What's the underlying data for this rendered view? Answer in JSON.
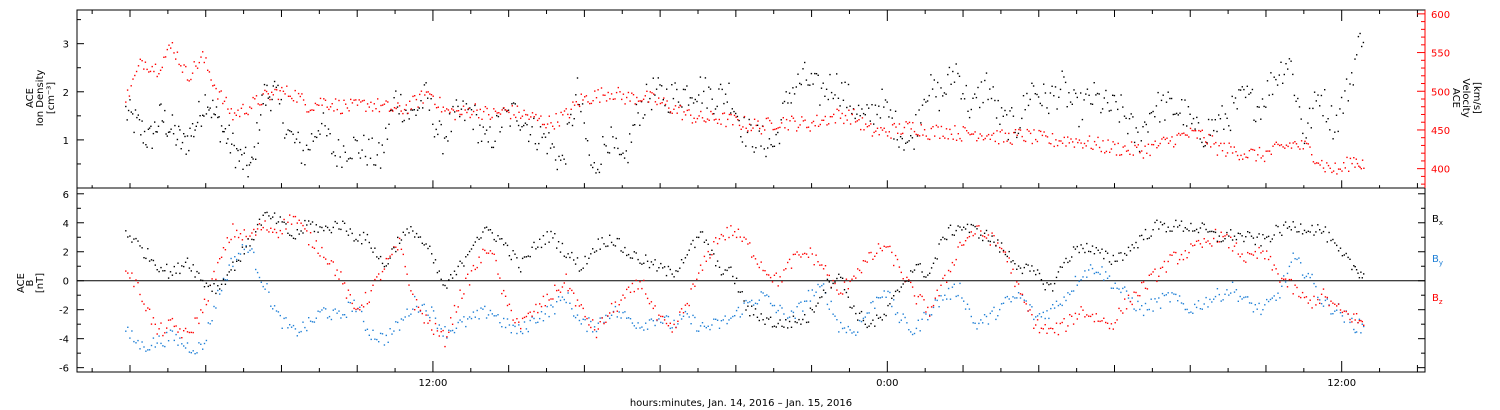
{
  "chart_data": [
    {
      "type": "scatter",
      "panel": "top",
      "ylabel_left": [
        "ACE",
        "Ion Density",
        "[cm⁻³]"
      ],
      "ylabel_right": [
        "ACE",
        "Velocity",
        "[km/s]"
      ],
      "ylim_left": [
        0,
        3.7
      ],
      "ylim_right": [
        375,
        605
      ],
      "yticks_left": [
        "1",
        "2",
        "3"
      ],
      "yticks_right": [
        "400",
        "450",
        "500",
        "550",
        "600"
      ],
      "series": [
        {
          "name": "",
          "color": "#000000",
          "axis": "left",
          "x": [
            -0.13,
            0.2,
            0.5,
            0.8,
            1.1,
            1.4,
            1.7,
            2.0,
            2.3,
            2.6,
            2.9,
            3.2,
            3.5,
            3.8,
            4.2,
            4.6,
            5.0,
            5.4,
            5.8,
            6.2,
            6.6,
            7.0,
            7.4,
            7.8,
            8.2,
            8.6,
            9.0,
            9.4,
            9.8,
            10.2,
            10.6,
            11.0,
            11.4,
            11.8,
            12.2,
            12.6,
            13.0,
            13.4,
            13.8,
            14.2,
            14.6,
            15.0,
            15.4,
            15.8,
            16.2,
            16.6,
            17.0,
            17.4,
            17.8,
            18.2,
            18.6,
            19.0,
            19.4,
            19.8,
            20.2,
            20.6,
            21.0,
            21.4,
            21.8,
            22.2,
            22.6,
            23.0,
            23.4,
            23.8,
            24.2,
            24.6,
            25.0,
            25.4,
            25.8,
            26.2,
            26.6,
            27.0,
            27.4,
            27.8,
            28.2,
            28.6,
            29.0,
            29.4,
            29.8,
            30.2,
            30.6,
            31.0,
            31.4,
            31.8,
            32.2,
            32.6
          ],
          "y": [
            1.6,
            1.3,
            1.0,
            1.5,
            1.2,
            0.9,
            1.3,
            1.9,
            1.4,
            1.0,
            0.6,
            0.4,
            1.9,
            2.0,
            1.1,
            0.7,
            1.4,
            0.7,
            0.9,
            0.8,
            0.6,
            1.9,
            1.5,
            1.9,
            1.0,
            1.5,
            1.6,
            0.9,
            1.4,
            1.6,
            1.2,
            1.0,
            0.5,
            2.0,
            0.3,
            1.1,
            0.4,
            1.6,
            2.0,
            1.9,
            2.0,
            2.1,
            1.9,
            2.0,
            1.2,
            1.0,
            0.9,
            2.0,
            2.3,
            2.0,
            2.2,
            1.8,
            1.4,
            1.8,
            1.3,
            0.9,
            2.1,
            1.9,
            2.5,
            1.6,
            2.2,
            1.4,
            1.3,
            2.1,
            1.8,
            2.1,
            1.6,
            1.9,
            1.7,
            1.6,
            1.0,
            1.7,
            1.7,
            1.6,
            1.1,
            1.3,
            1.5,
            1.9,
            1.7,
            2.3,
            2.7,
            1.1,
            2.0,
            1.3,
            2.2,
            3.5
          ]
        },
        {
          "name": "",
          "color": "#ff0000",
          "axis": "right",
          "x": [
            -0.13,
            0.3,
            0.7,
            1.1,
            1.5,
            1.9,
            2.3,
            2.7,
            3.1,
            3.5,
            3.9,
            4.3,
            4.7,
            5.1,
            5.5,
            5.9,
            6.3,
            6.7,
            7.1,
            7.5,
            7.9,
            8.3,
            8.7,
            9.1,
            9.5,
            9.9,
            10.3,
            10.7,
            11.1,
            11.5,
            11.9,
            12.3,
            12.7,
            13.1,
            13.5,
            13.9,
            14.3,
            14.7,
            15.1,
            15.5,
            15.9,
            16.3,
            16.7,
            17.1,
            17.5,
            17.9,
            18.3,
            18.7,
            19.1,
            19.5,
            19.9,
            20.3,
            20.7,
            21.1,
            21.5,
            21.9,
            22.3,
            22.7,
            23.1,
            23.5,
            23.9,
            24.3,
            24.7,
            25.1,
            25.5,
            25.9,
            26.3,
            26.7,
            27.1,
            27.5,
            27.9,
            28.3,
            28.7,
            29.1,
            29.5,
            29.9,
            30.3,
            30.7,
            31.1,
            31.5,
            31.9,
            32.3,
            32.6
          ],
          "y": [
            490,
            540,
            530,
            560,
            520,
            545,
            500,
            470,
            480,
            492,
            500,
            498,
            482,
            488,
            482,
            480,
            485,
            480,
            476,
            486,
            500,
            475,
            472,
            478,
            470,
            475,
            472,
            465,
            460,
            470,
            490,
            495,
            500,
            492,
            494,
            488,
            480,
            470,
            465,
            466,
            462,
            458,
            455,
            462,
            460,
            458,
            464,
            470,
            468,
            450,
            448,
            452,
            455,
            448,
            450,
            446,
            447,
            445,
            440,
            444,
            441,
            437,
            438,
            436,
            432,
            428,
            426,
            424,
            430,
            438,
            445,
            444,
            428,
            424,
            420,
            418,
            426,
            433,
            427,
            405,
            398,
            412,
            405
          ]
        }
      ]
    },
    {
      "type": "scatter",
      "panel": "bottom",
      "ylabel_left": [
        "ACE",
        "B",
        "[nT]"
      ],
      "ylim": [
        -6.3,
        6.4
      ],
      "yticks": [
        "-6",
        "-4",
        "-2",
        "0",
        "2",
        "4",
        "6"
      ],
      "legend": "right",
      "series": [
        {
          "name": "Bx",
          "color": "#000000",
          "x": [
            -0.13,
            0.3,
            0.7,
            1.1,
            1.5,
            1.9,
            2.3,
            2.7,
            3.1,
            3.5,
            3.9,
            4.3,
            4.7,
            5.1,
            5.5,
            5.9,
            6.3,
            6.7,
            7.1,
            7.5,
            7.9,
            8.3,
            8.7,
            9.1,
            9.5,
            9.9,
            10.3,
            10.7,
            11.1,
            11.5,
            11.9,
            12.3,
            12.7,
            13.1,
            13.5,
            13.9,
            14.3,
            14.7,
            15.1,
            15.5,
            15.9,
            16.3,
            16.7,
            17.1,
            17.5,
            17.9,
            18.3,
            18.7,
            19.1,
            19.5,
            19.9,
            20.3,
            20.7,
            21.1,
            21.5,
            21.9,
            22.3,
            22.7,
            23.1,
            23.5,
            23.9,
            24.3,
            24.7,
            25.1,
            25.5,
            25.9,
            26.3,
            26.7,
            27.1,
            27.5,
            27.9,
            28.3,
            28.7,
            29.1,
            29.5,
            29.9,
            30.3,
            30.7,
            31.1,
            31.5,
            31.9,
            32.3,
            32.6
          ],
          "y": [
            3.5,
            2.2,
            1.2,
            0.5,
            1.5,
            0.0,
            -0.5,
            1.0,
            2.5,
            4.5,
            4.2,
            3.0,
            4.0,
            3.5,
            4.0,
            3.2,
            2.8,
            1.0,
            3.0,
            3.5,
            2.0,
            -0.5,
            1.0,
            3.0,
            3.5,
            2.5,
            1.0,
            2.5,
            3.2,
            2.0,
            1.0,
            2.5,
            3.0,
            2.0,
            1.5,
            1.0,
            0.5,
            2.0,
            3.2,
            1.0,
            0.5,
            -2.0,
            -2.5,
            -3.0,
            -2.8,
            -2.5,
            -0.5,
            0.5,
            -2.0,
            -3.0,
            -2.5,
            -0.5,
            1.0,
            0.5,
            3.2,
            3.8,
            3.5,
            3.0,
            2.0,
            1.0,
            0.5,
            -0.5,
            1.5,
            2.5,
            2.0,
            1.5,
            2.0,
            3.0,
            3.8,
            3.8,
            3.8,
            3.6,
            3.0,
            3.2,
            3.0,
            2.8,
            3.5,
            3.8,
            3.7,
            3.5,
            2.0,
            1.0,
            0.4
          ]
        },
        {
          "name": "By",
          "color": "#1e7fd6",
          "x": [
            -0.13,
            0.3,
            0.7,
            1.1,
            1.5,
            1.9,
            2.3,
            2.7,
            3.1,
            3.5,
            3.9,
            4.3,
            4.7,
            5.1,
            5.5,
            5.9,
            6.3,
            6.7,
            7.1,
            7.5,
            7.9,
            8.3,
            8.7,
            9.1,
            9.5,
            9.9,
            10.3,
            10.7,
            11.1,
            11.5,
            11.9,
            12.3,
            12.7,
            13.1,
            13.5,
            13.9,
            14.3,
            14.7,
            15.1,
            15.5,
            15.9,
            16.3,
            16.7,
            17.1,
            17.5,
            17.9,
            18.3,
            18.7,
            19.1,
            19.5,
            19.9,
            20.3,
            20.7,
            21.1,
            21.5,
            21.9,
            22.3,
            22.7,
            23.1,
            23.5,
            23.9,
            24.3,
            24.7,
            25.1,
            25.5,
            25.9,
            26.3,
            26.7,
            27.1,
            27.5,
            27.9,
            28.3,
            28.7,
            29.1,
            29.5,
            29.9,
            30.3,
            30.7,
            31.1,
            31.5,
            31.9,
            32.3,
            32.6
          ],
          "y": [
            -3.5,
            -4.5,
            -4.2,
            -3.8,
            -4.5,
            -4.6,
            -1.0,
            1.5,
            2.5,
            0.0,
            -2.5,
            -3.5,
            -3.0,
            -2.0,
            -2.5,
            -1.5,
            -3.5,
            -4.0,
            -3.0,
            -1.5,
            -2.0,
            -3.5,
            -3.0,
            -2.5,
            -2.0,
            -3.0,
            -3.5,
            -2.5,
            -2.0,
            -1.0,
            -3.0,
            -3.0,
            -2.0,
            -2.5,
            -3.0,
            -2.5,
            -3.0,
            -2.5,
            -3.2,
            -3.0,
            -2.5,
            -1.5,
            -1.0,
            -2.0,
            -2.5,
            -1.0,
            -0.5,
            -3.0,
            -3.5,
            -2.0,
            -0.5,
            -2.5,
            -3.5,
            -2.0,
            -1.0,
            -0.5,
            -3.0,
            -2.5,
            -1.5,
            -1.0,
            -2.5,
            -2.0,
            -1.0,
            0.5,
            1.0,
            0.0,
            -1.0,
            -2.0,
            -1.5,
            -1.0,
            -2.0,
            -1.5,
            -1.0,
            -0.5,
            -1.5,
            -2.0,
            -1.0,
            1.5,
            0.5,
            -1.5,
            -2.0,
            -3.0,
            -3.2
          ]
        },
        {
          "name": "Bz",
          "color": "#ff0000",
          "x": [
            -0.13,
            0.3,
            0.7,
            1.1,
            1.5,
            1.9,
            2.3,
            2.7,
            3.1,
            3.5,
            3.9,
            4.3,
            4.7,
            5.1,
            5.5,
            5.9,
            6.3,
            6.7,
            7.1,
            7.5,
            7.9,
            8.3,
            8.7,
            9.1,
            9.5,
            9.9,
            10.3,
            10.7,
            11.1,
            11.5,
            11.9,
            12.3,
            12.7,
            13.1,
            13.5,
            13.9,
            14.3,
            14.7,
            15.1,
            15.5,
            15.9,
            16.3,
            16.7,
            17.1,
            17.5,
            17.9,
            18.3,
            18.7,
            19.1,
            19.5,
            19.9,
            20.3,
            20.7,
            21.1,
            21.5,
            21.9,
            22.3,
            22.7,
            23.1,
            23.5,
            23.9,
            24.3,
            24.7,
            25.1,
            25.5,
            25.9,
            26.3,
            26.7,
            27.1,
            27.5,
            27.9,
            28.3,
            28.7,
            29.1,
            29.5,
            29.9,
            30.3,
            30.7,
            31.1,
            31.5,
            31.9,
            32.3,
            32.6
          ],
          "y": [
            1.0,
            -1.0,
            -3.5,
            -3.0,
            -3.8,
            -2.0,
            1.0,
            3.5,
            3.0,
            3.8,
            3.5,
            4.5,
            3.0,
            2.0,
            0.5,
            -2.0,
            -1.0,
            1.0,
            2.5,
            -1.5,
            -3.0,
            -4.0,
            -1.0,
            1.0,
            2.5,
            -1.5,
            -3.0,
            -2.0,
            -1.0,
            0.0,
            -2.0,
            -3.5,
            -2.0,
            -1.0,
            0.0,
            -2.5,
            -3.5,
            -1.5,
            1.0,
            3.0,
            3.5,
            2.5,
            1.0,
            0.0,
            1.5,
            2.0,
            1.0,
            -1.0,
            0.5,
            1.5,
            2.5,
            1.0,
            -1.0,
            -2.0,
            0.0,
            2.5,
            3.5,
            3.0,
            2.0,
            -1.0,
            -3.0,
            -3.5,
            -3.0,
            -2.0,
            -2.5,
            -3.0,
            -1.5,
            -0.5,
            0.5,
            1.5,
            2.0,
            2.5,
            3.2,
            2.5,
            1.5,
            2.0,
            0.5,
            -0.5,
            -1.5,
            -1.0,
            -2.0,
            -2.5,
            -3.0
          ]
        }
      ]
    }
  ],
  "x_axis": {
    "xlim": [
      -1.4,
      34.2
    ],
    "major_ticks": [
      {
        "x": 8,
        "label": "12:00"
      },
      {
        "x": 20,
        "label": "0:00"
      },
      {
        "x": 32,
        "label": "12:00"
      }
    ],
    "xlabel": "hours:minutes, Jan. 14, 2016 – Jan. 15, 2016"
  },
  "labels": {
    "top_left_1": "ACE",
    "top_left_2": "Ion Density",
    "top_left_3": "[cm⁻³]",
    "top_right_1": "ACE",
    "top_right_2": "Velocity",
    "top_right_3": "[km/s]",
    "bot_left_1": "ACE",
    "bot_left_2": "B",
    "bot_left_3": "[nT]",
    "legend_bx": "B",
    "legend_bx_sub": "x",
    "legend_by": "B",
    "legend_by_sub": "y",
    "legend_bz": "B",
    "legend_bz_sub": "z",
    "xlabel": "hours:minutes, Jan. 14, 2016 – Jan. 15, 2016"
  }
}
